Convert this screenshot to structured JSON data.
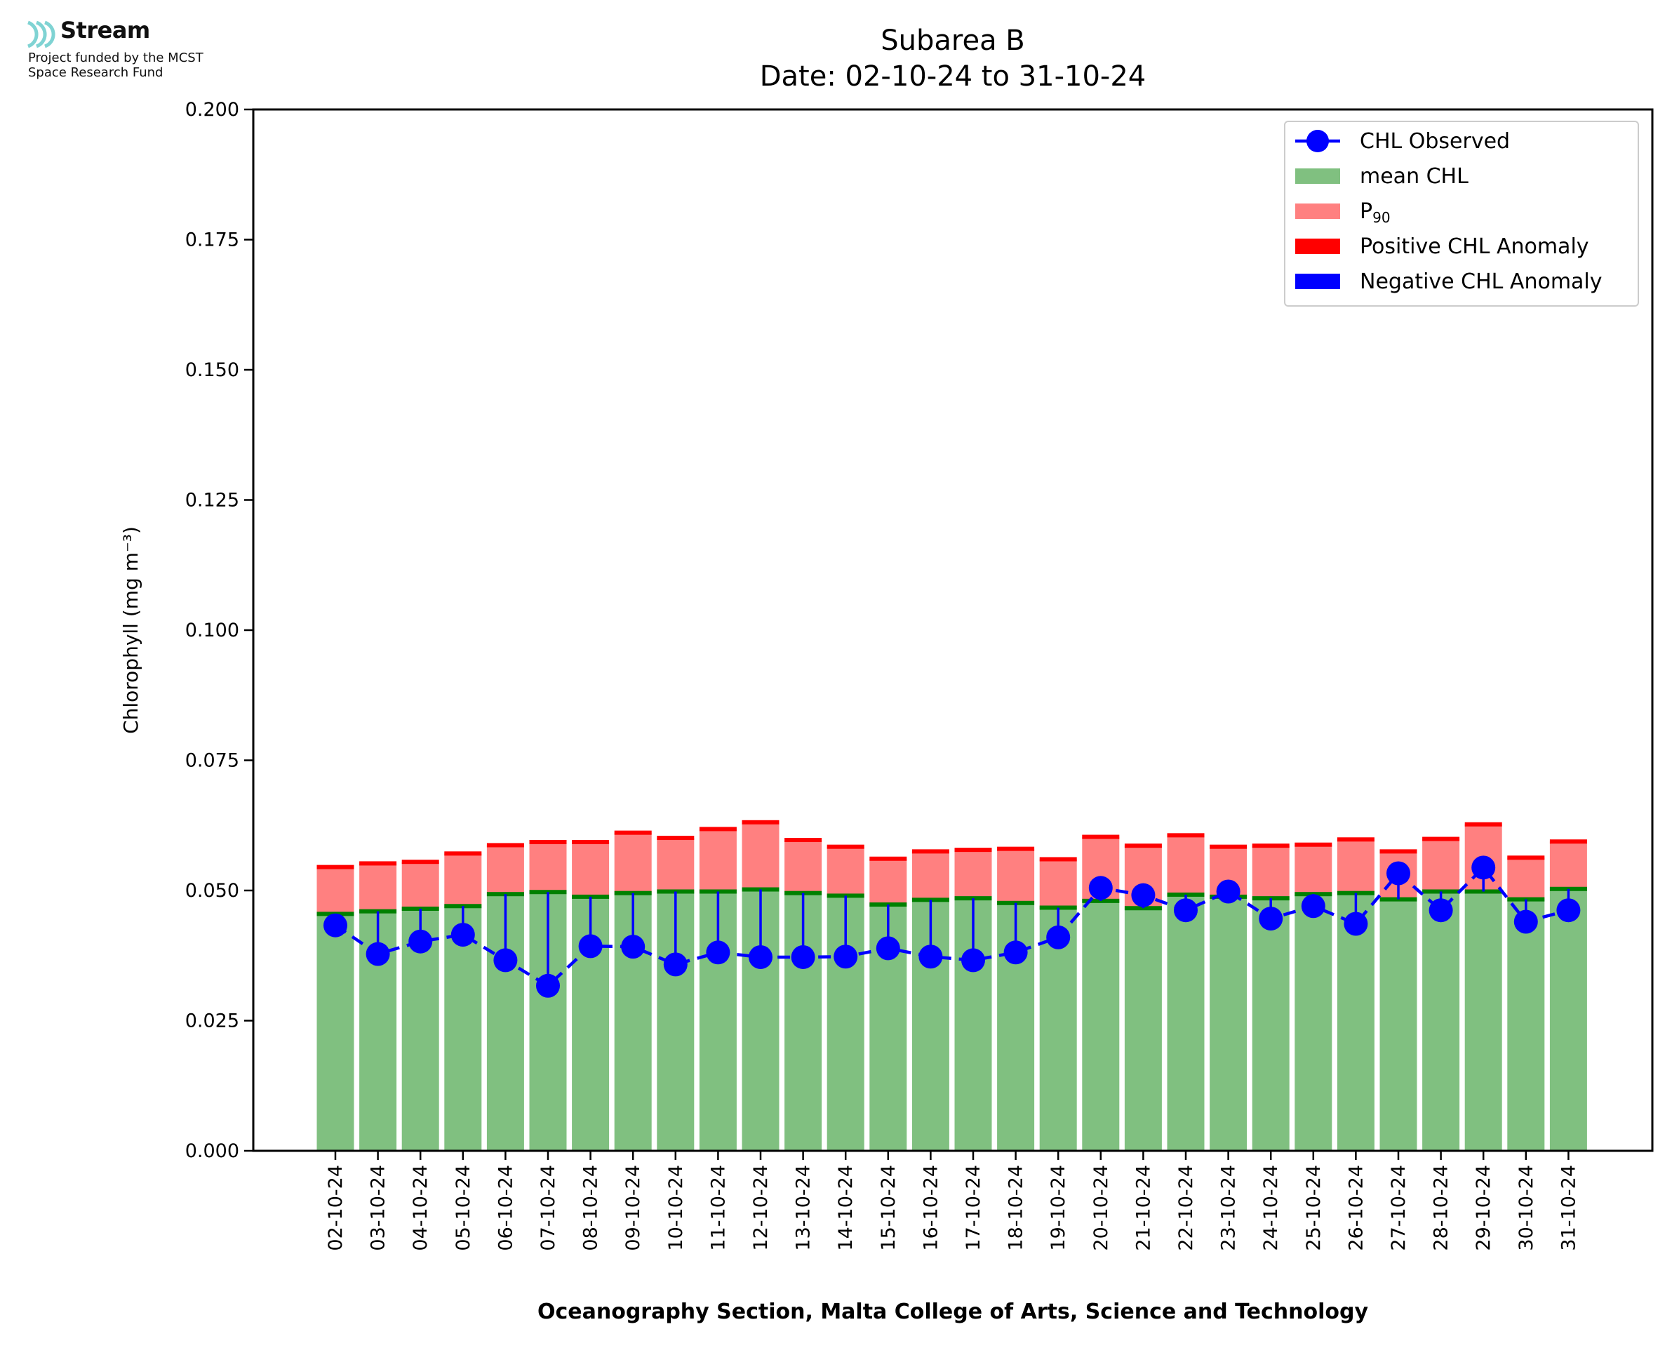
{
  "logo": {
    "name": "Stream",
    "subtitle_line1": "Project funded by the MCST",
    "subtitle_line2": "Space Research Fund"
  },
  "chart_data": {
    "type": "bar",
    "title": "Subarea B",
    "subtitle": "Date: 02-10-24 to 31-10-24",
    "xlabel": "Oceanography Section, Malta College of Arts, Science and Technology",
    "ylabel": "Chlorophyll (mg m⁻³)",
    "ylim": [
      0,
      0.2
    ],
    "yticks": [
      "0.000",
      "0.025",
      "0.050",
      "0.075",
      "0.100",
      "0.125",
      "0.150",
      "0.175",
      "0.200"
    ],
    "grid": false,
    "legend_position": "top-right",
    "categories": [
      "02-10-24",
      "03-10-24",
      "04-10-24",
      "05-10-24",
      "06-10-24",
      "07-10-24",
      "08-10-24",
      "09-10-24",
      "10-10-24",
      "11-10-24",
      "12-10-24",
      "13-10-24",
      "14-10-24",
      "15-10-24",
      "16-10-24",
      "17-10-24",
      "18-10-24",
      "19-10-24",
      "20-10-24",
      "21-10-24",
      "22-10-24",
      "23-10-24",
      "24-10-24",
      "25-10-24",
      "26-10-24",
      "27-10-24",
      "28-10-24",
      "29-10-24",
      "30-10-24",
      "31-10-24"
    ],
    "series": [
      {
        "name": "mean CHL",
        "color": "#80c080",
        "line_color": "#008000",
        "values": [
          0.0455,
          0.046,
          0.0465,
          0.047,
          0.0493,
          0.0497,
          0.0488,
          0.0495,
          0.0498,
          0.0498,
          0.0502,
          0.0495,
          0.049,
          0.0473,
          0.0482,
          0.0485,
          0.0476,
          0.0467,
          0.048,
          0.0466,
          0.0492,
          0.0488,
          0.0485,
          0.0493,
          0.0495,
          0.0483,
          0.0498,
          0.0498,
          0.0483,
          0.0503
        ]
      },
      {
        "name": "P₉₀",
        "color": "#ff8080",
        "line_color": "#ff0000",
        "values": [
          0.0545,
          0.0552,
          0.0555,
          0.0571,
          0.0587,
          0.0593,
          0.0593,
          0.0611,
          0.0601,
          0.0618,
          0.0631,
          0.0597,
          0.0584,
          0.0561,
          0.0575,
          0.0578,
          0.058,
          0.056,
          0.0603,
          0.0586,
          0.0606,
          0.0584,
          0.0586,
          0.0588,
          0.0598,
          0.0575,
          0.0599,
          0.0627,
          0.0563,
          0.0594
        ]
      },
      {
        "name": "CHL Observed",
        "color": "#0000ff",
        "values": [
          0.0433,
          0.0378,
          0.0402,
          0.0415,
          0.0366,
          0.0317,
          0.0393,
          0.0392,
          0.0358,
          0.0381,
          0.0372,
          0.0372,
          0.0373,
          0.0389,
          0.0373,
          0.0366,
          0.0381,
          0.041,
          0.0505,
          0.0491,
          0.0462,
          0.0498,
          0.0446,
          0.047,
          0.0436,
          0.0533,
          0.0462,
          0.0544,
          0.044,
          0.0462
        ]
      }
    ],
    "legend": [
      {
        "label": "CHL Observed",
        "kind": "line-marker",
        "color": "#0000ff"
      },
      {
        "label": "mean CHL",
        "kind": "patch",
        "color": "#80c080"
      },
      {
        "label": "P",
        "sub": "90",
        "kind": "patch",
        "color": "#ff8080"
      },
      {
        "label": "Positive CHL Anomaly",
        "kind": "patch",
        "color": "#ff0000"
      },
      {
        "label": "Negative CHL Anomaly",
        "kind": "patch",
        "color": "#0000ff"
      }
    ]
  }
}
